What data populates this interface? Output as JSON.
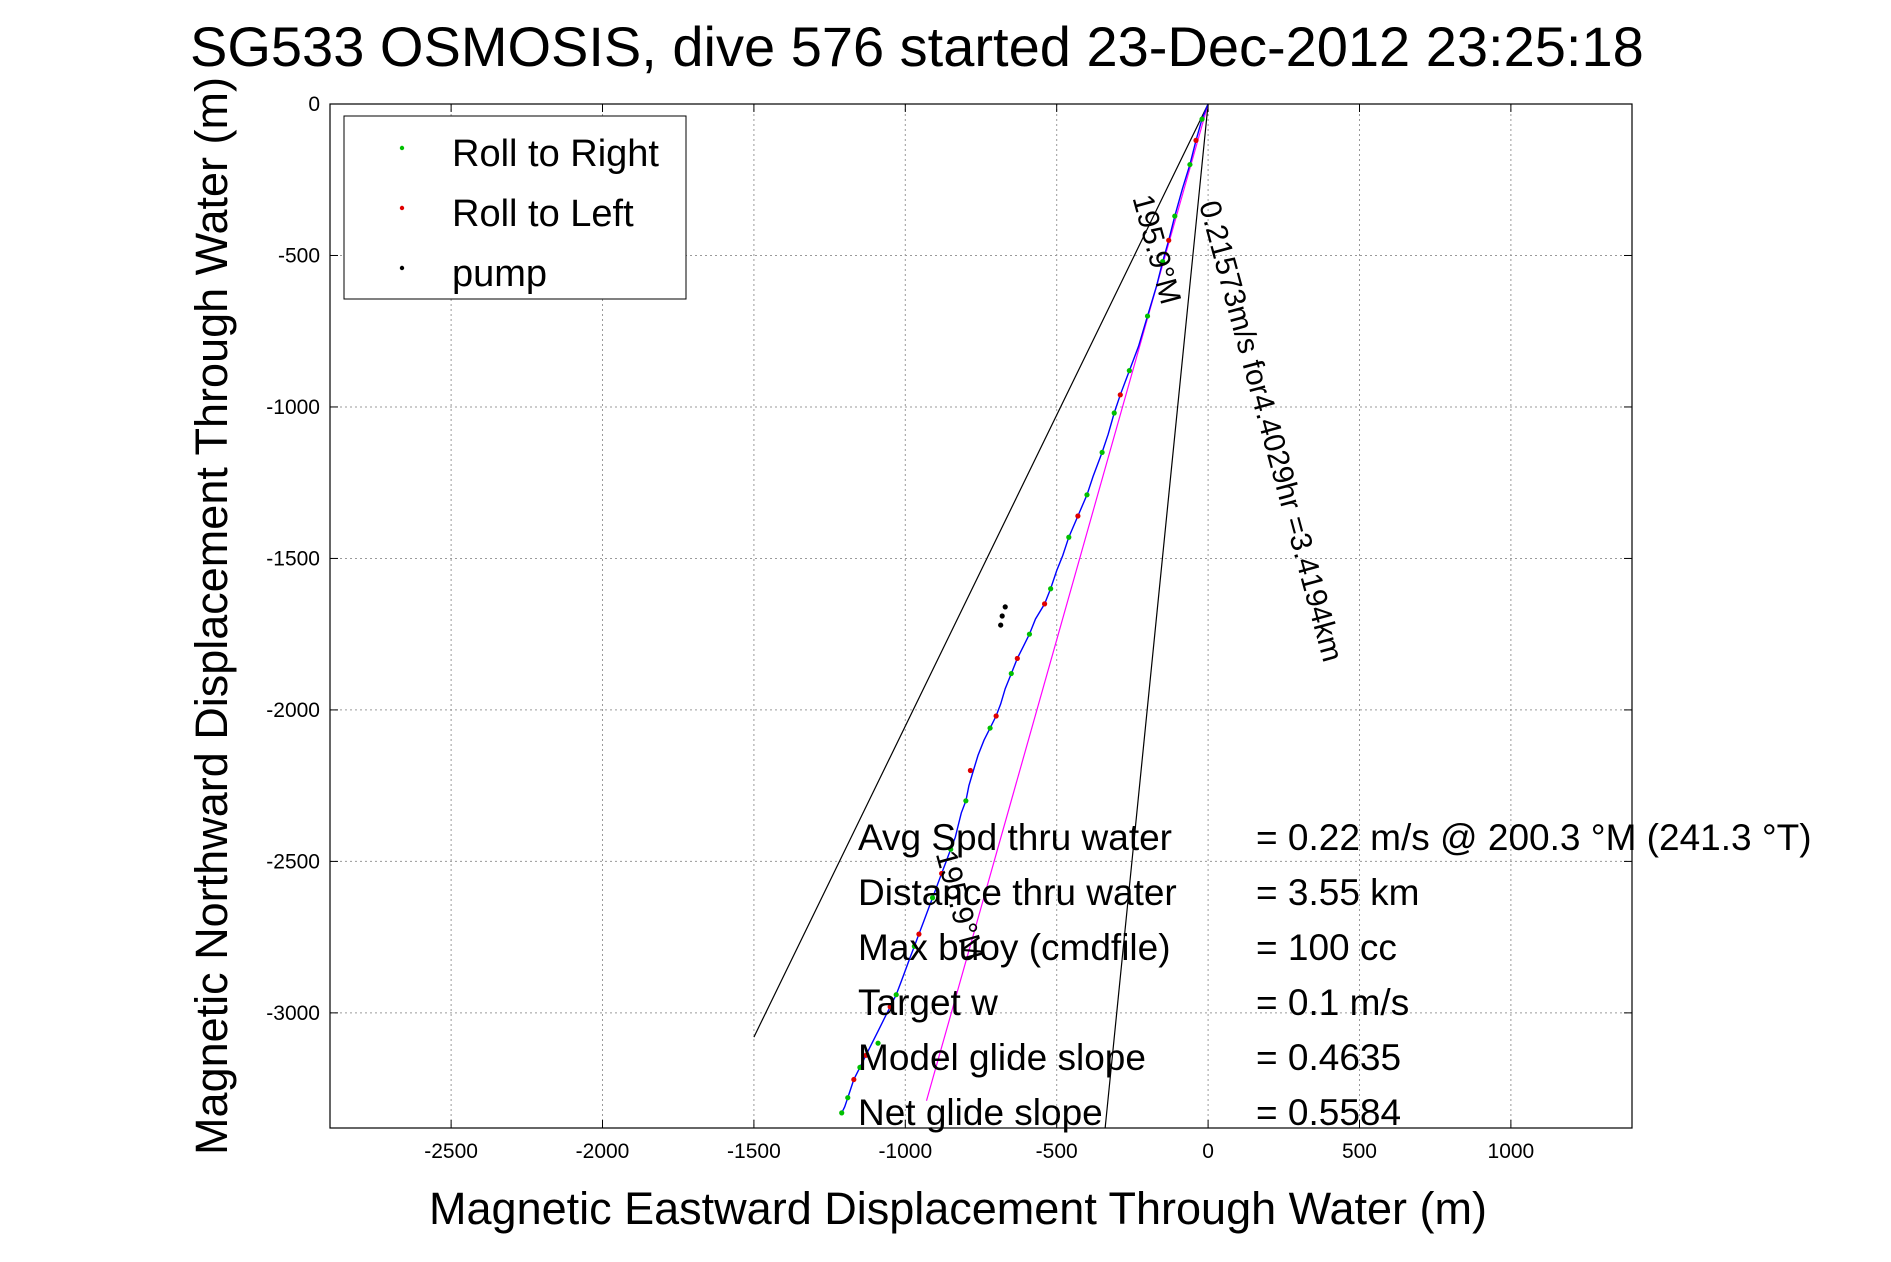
{
  "chart_data": {
    "type": "line",
    "title": "SG533 OSMOSIS, dive 576 started 23-Dec-2012 23:25:18",
    "xlabel": "Magnetic Eastward Displacement Through Water (m)",
    "ylabel": "Magnetic Northward Displacement Through Water (m)",
    "xlim": [
      -2900,
      1400
    ],
    "ylim": [
      -3380,
      0
    ],
    "xticks": [
      -2500,
      -2000,
      -1500,
      -1000,
      -500,
      0,
      500,
      1000
    ],
    "xtick_labels": [
      "-2500",
      "-2000",
      "-1500",
      "-1000",
      "-500",
      "0",
      "500",
      "1000"
    ],
    "yticks": [
      0,
      -500,
      -1000,
      -1500,
      -2000,
      -2500,
      -3000
    ],
    "ytick_labels": [
      "0",
      "-500",
      "-1000",
      "-1500",
      "-2000",
      "-2500",
      "-3000"
    ],
    "grid": true,
    "legend_position": "top-left",
    "legend": [
      {
        "label": "Roll to Right",
        "color": "#00c000"
      },
      {
        "label": "Roll to Left",
        "color": "#e00000"
      },
      {
        "label": "pump",
        "color": "#000000"
      }
    ],
    "track": {
      "name": "glider track",
      "color": "#0000ff",
      "x": [
        0,
        -20,
        -40,
        -60,
        -85,
        -110,
        -130,
        -150,
        -170,
        -200,
        -230,
        -260,
        -290,
        -310,
        -330,
        -350,
        -380,
        -400,
        -430,
        -460,
        -480,
        -500,
        -520,
        -540,
        -570,
        -590,
        -610,
        -630,
        -650,
        -670,
        -685,
        -700,
        -720,
        -740,
        -760,
        -775,
        -790,
        -800,
        -815,
        -825,
        -835,
        -850,
        -865,
        -880,
        -895,
        -910,
        -925,
        -940,
        -955,
        -970,
        -985,
        -1000,
        -1015,
        -1030,
        -1050,
        -1070,
        -1090,
        -1110,
        -1130,
        -1150,
        -1170,
        -1180,
        -1190,
        -1200,
        -1210
      ],
      "y": [
        0,
        -50,
        -120,
        -200,
        -280,
        -370,
        -450,
        -520,
        -600,
        -700,
        -800,
        -880,
        -960,
        -1020,
        -1090,
        -1150,
        -1230,
        -1290,
        -1360,
        -1430,
        -1490,
        -1540,
        -1600,
        -1650,
        -1700,
        -1750,
        -1790,
        -1830,
        -1880,
        -1930,
        -1980,
        -2020,
        -2060,
        -2100,
        -2150,
        -2200,
        -2250,
        -2300,
        -2340,
        -2380,
        -2420,
        -2460,
        -2500,
        -2540,
        -2580,
        -2620,
        -2660,
        -2700,
        -2740,
        -2780,
        -2820,
        -2860,
        -2900,
        -2940,
        -2980,
        -3020,
        -3060,
        -3100,
        -3140,
        -3180,
        -3220,
        -3250,
        -3280,
        -3310,
        -3330
      ]
    },
    "roll_right": {
      "x": [
        -20,
        -60,
        -110,
        -150,
        -200,
        -260,
        -310,
        -350,
        -400,
        -460,
        -520,
        -590,
        -650,
        -720,
        -800,
        -850,
        -910,
        -970,
        -1030,
        -1090,
        -1150,
        -1190,
        -1210
      ],
      "y": [
        -50,
        -200,
        -370,
        -520,
        -700,
        -880,
        -1020,
        -1150,
        -1290,
        -1430,
        -1600,
        -1750,
        -1880,
        -2060,
        -2300,
        -2460,
        -2620,
        -2780,
        -2940,
        -3100,
        -3180,
        -3280,
        -3330
      ]
    },
    "roll_left": {
      "x": [
        -40,
        -130,
        -290,
        -430,
        -540,
        -630,
        -700,
        -785,
        -880,
        -955,
        -1050,
        -1130,
        -1170
      ],
      "y": [
        -120,
        -450,
        -960,
        -1360,
        -1650,
        -1830,
        -2020,
        -2200,
        -2540,
        -2740,
        -2980,
        -3140,
        -3220
      ]
    },
    "pump": {
      "x": [
        -670,
        -680,
        -685
      ],
      "y": [
        -1660,
        -1690,
        -1720
      ]
    },
    "reference_lines": [
      {
        "color": "#000000",
        "x": [
          0,
          -1500
        ],
        "y": [
          0,
          -3080
        ]
      },
      {
        "color": "#000000",
        "x": [
          0,
          -340
        ],
        "y": [
          0,
          -3380
        ]
      },
      {
        "color": "#ff00ff",
        "x": [
          0,
          -930
        ],
        "y": [
          0,
          -3290
        ]
      }
    ],
    "rotated_labels": [
      {
        "text": "0.21573m/s for4.4029hr =3.4194km",
        "x": -30,
        "y": -330,
        "angle": 74.8
      },
      {
        "text": "195.9°M",
        "x": -250,
        "y": -310,
        "angle": 74.8
      },
      {
        "text": "195.9°M",
        "x": -900,
        "y": -2475,
        "angle": 74.8
      }
    ],
    "annotations": [
      {
        "label": "Avg Spd thru water",
        "value": "=  0.22 m/s @ 200.3 °M (241.3 °T)"
      },
      {
        "label": "Distance thru water",
        "value": "=  3.55 km"
      },
      {
        "label": "Max buoy (cmdfile)",
        "value": "= 100 cc"
      },
      {
        "label": "Target w",
        "value": "= 0.1 m/s"
      },
      {
        "label": "Model glide slope",
        "value": "= 0.4635"
      },
      {
        "label": "Net glide slope",
        "value": "= 0.5584"
      }
    ]
  }
}
